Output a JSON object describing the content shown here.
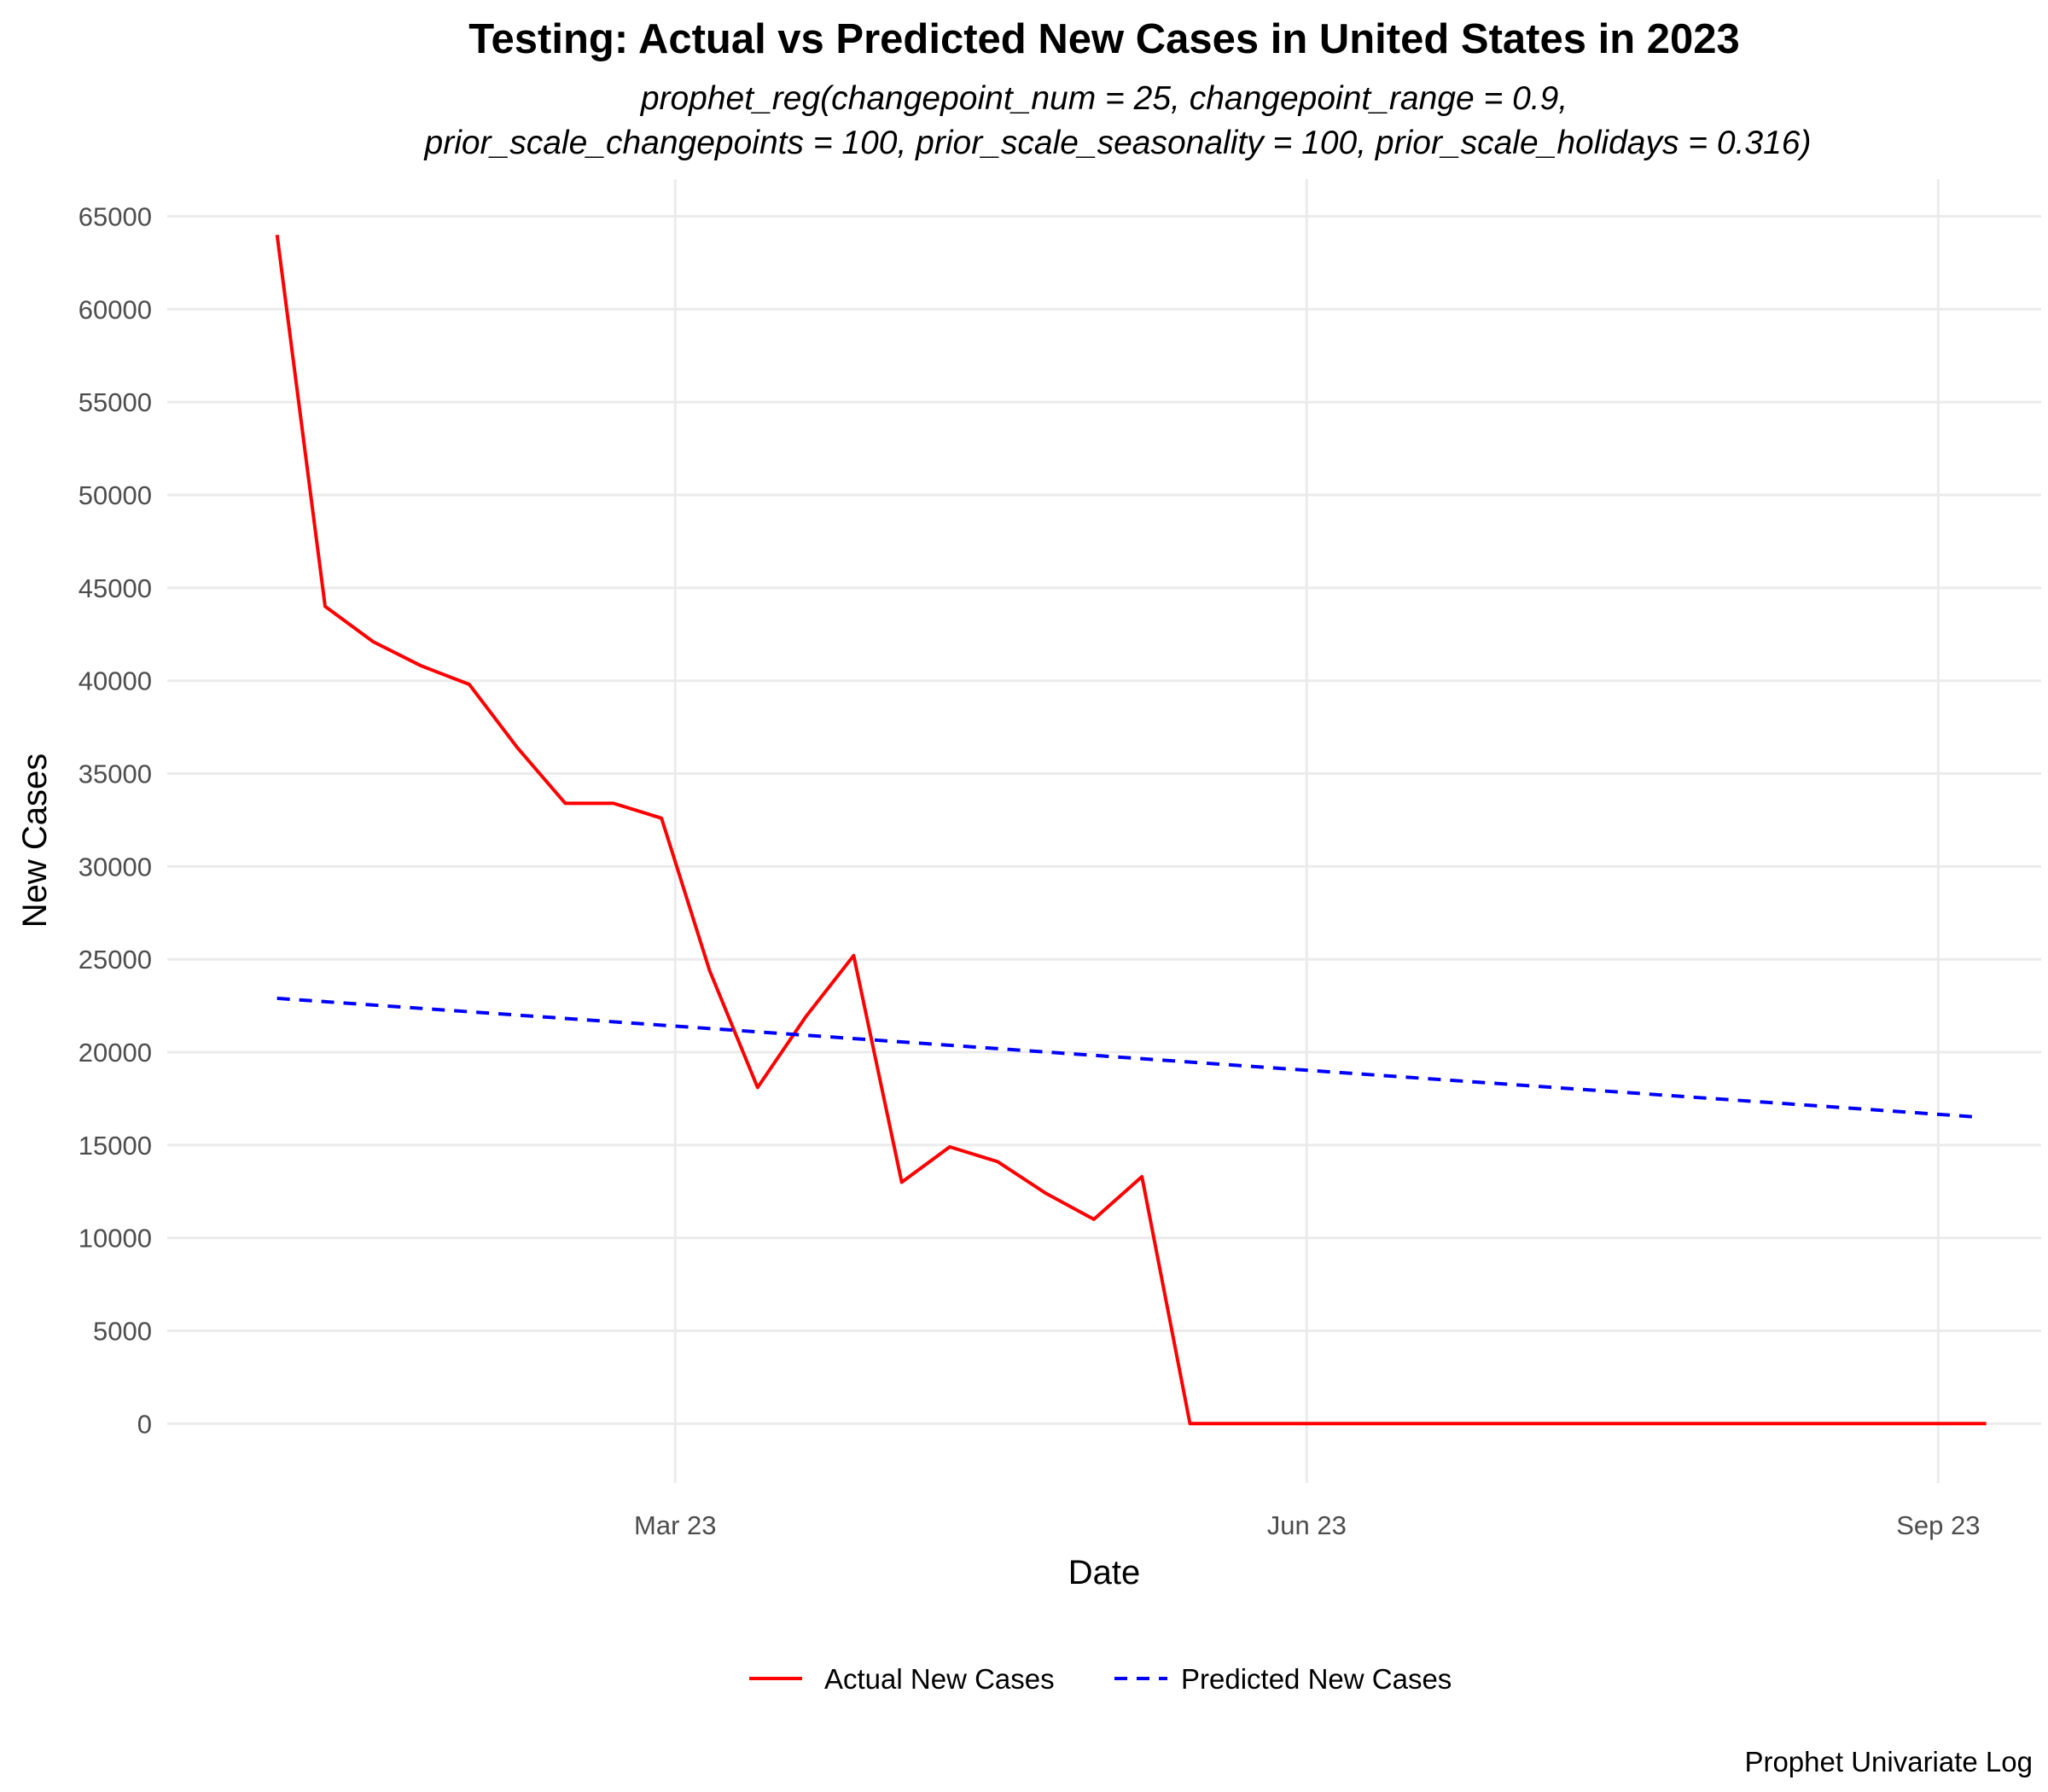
{
  "chart_data": {
    "type": "line",
    "title": "Testing: Actual vs Predicted New Cases in United States in 2023",
    "subtitle_lines": [
      "prophet_reg(changepoint_num = 25, changepoint_range = 0.9,",
      "prior_scale_changepoints = 100, prior_scale_seasonality = 100, prior_scale_holidays = 0.316)"
    ],
    "xlabel": "Date",
    "ylabel": "New Cases",
    "caption": "Prophet Univariate Log",
    "x_ticks": [
      {
        "date": "2023-03-01",
        "label": "Mar 23"
      },
      {
        "date": "2023-06-01",
        "label": "Jun 23"
      },
      {
        "date": "2023-09-01",
        "label": "Sep 23"
      }
    ],
    "y_ticks": [
      0,
      5000,
      10000,
      15000,
      20000,
      25000,
      30000,
      35000,
      40000,
      45000,
      50000,
      55000,
      60000,
      65000
    ],
    "xlim": [
      "2022-12-17",
      "2023-09-16"
    ],
    "ylim": [
      -3200,
      67000
    ],
    "grid": true,
    "legend_position": "bottom",
    "colors": {
      "actual": "#ff0000",
      "predicted": "#0000ff",
      "grid": "#ebebeb"
    },
    "series": [
      {
        "name": "Actual New Cases",
        "color": "#ff0000",
        "dash": "solid",
        "points": [
          [
            "2023-01-02",
            64000
          ],
          [
            "2023-01-09",
            44000
          ],
          [
            "2023-01-16",
            42100
          ],
          [
            "2023-01-23",
            40800
          ],
          [
            "2023-01-30",
            39800
          ],
          [
            "2023-02-06",
            36400
          ],
          [
            "2023-02-13",
            33400
          ],
          [
            "2023-02-20",
            33400
          ],
          [
            "2023-02-27",
            32600
          ],
          [
            "2023-03-06",
            24400
          ],
          [
            "2023-03-13",
            18100
          ],
          [
            "2023-03-20",
            21900
          ],
          [
            "2023-03-27",
            25200
          ],
          [
            "2023-04-03",
            13000
          ],
          [
            "2023-04-10",
            14900
          ],
          [
            "2023-04-17",
            14100
          ],
          [
            "2023-04-24",
            12400
          ],
          [
            "2023-05-01",
            11000
          ],
          [
            "2023-05-08",
            13300
          ],
          [
            "2023-05-15",
            0
          ],
          [
            "2023-05-22",
            0
          ],
          [
            "2023-06-01",
            0
          ],
          [
            "2023-07-01",
            0
          ],
          [
            "2023-08-01",
            0
          ],
          [
            "2023-09-01",
            0
          ],
          [
            "2023-09-08",
            0
          ]
        ]
      },
      {
        "name": "Predicted New Cases",
        "color": "#0000ff",
        "dash": "dashed",
        "points": [
          [
            "2023-01-02",
            22900
          ],
          [
            "2023-09-07",
            16500
          ]
        ]
      }
    ]
  }
}
